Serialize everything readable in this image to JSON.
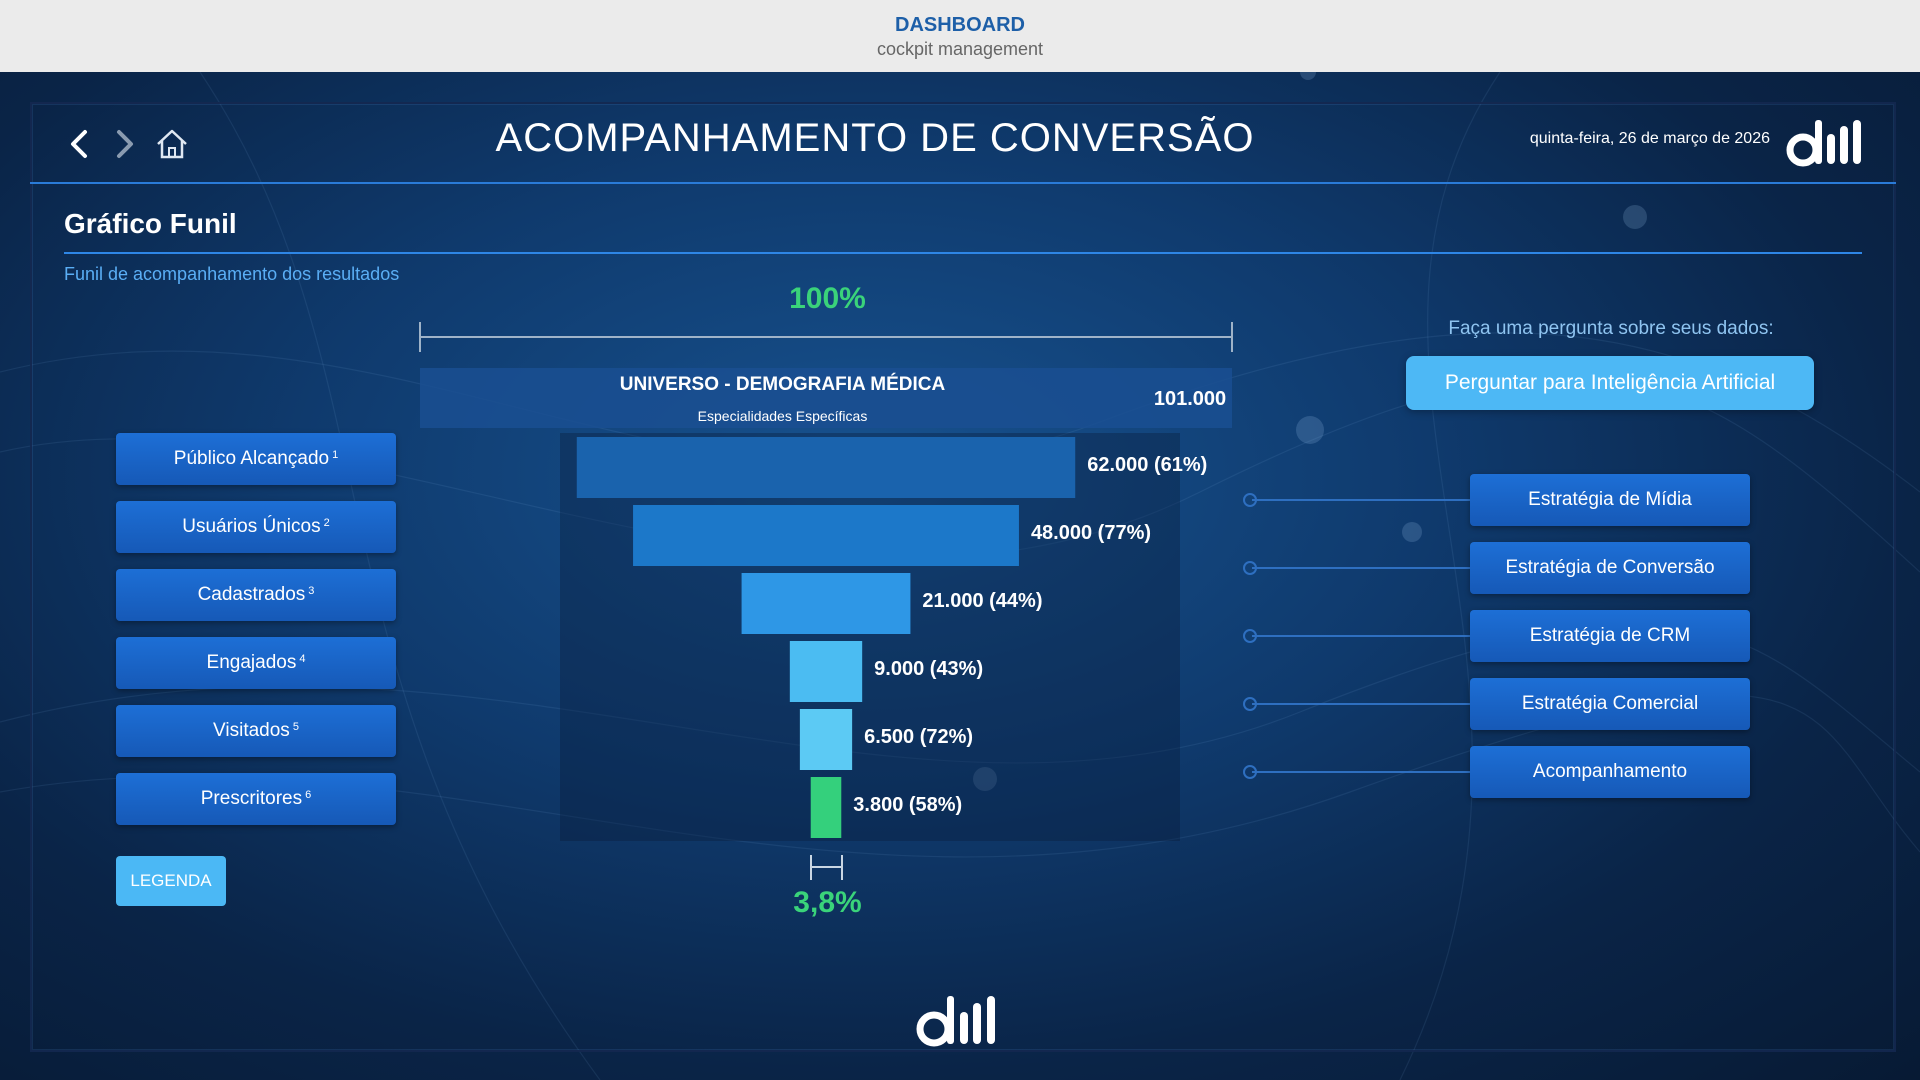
{
  "topbar": {
    "title": "DASHBOARD",
    "subtitle": "cockpit management"
  },
  "header": {
    "title": "ACOMPANHAMENTO DE CONVERSÃO",
    "date": "quinta-feira, 26 de março de 2026",
    "nav_icons": [
      "chevron-left-icon",
      "chevron-right-icon",
      "home-icon"
    ],
    "logo": "dm-logo"
  },
  "section": {
    "title": "Gráfico Funil",
    "subtitle": "Funil de acompanhamento dos resultados"
  },
  "funnel": {
    "top_percent": "100%",
    "bottom_percent": "3,8%",
    "universe": {
      "title": "UNIVERSO - DEMOGRAFIA MÉDICA",
      "subtitle": "Especialidades Específicas",
      "value_label": "101.000",
      "value": 101000
    },
    "stages": [
      {
        "label": "Público Alcançado",
        "sup": "1",
        "value": 62000,
        "value_label": "62.000 (61%)",
        "color": "#1a63ad"
      },
      {
        "label": "Usuários Únicos",
        "sup": "2",
        "value": 48000,
        "value_label": "48.000 (77%)",
        "color": "#1c78c9"
      },
      {
        "label": "Cadastrados",
        "sup": "3",
        "value": 21000,
        "value_label": "21.000 (44%)",
        "color": "#2e97e6"
      },
      {
        "label": "Engajados",
        "sup": "4",
        "value": 9000,
        "value_label": "9.000 (43%)",
        "color": "#4bbcf2"
      },
      {
        "label": "Visitados",
        "sup": "5",
        "value": 6500,
        "value_label": "6.500 (72%)",
        "color": "#5ccaf4"
      },
      {
        "label": "Prescritores",
        "sup": "6",
        "value": 3800,
        "value_label": "3.800 (58%)",
        "color": "#34d07c"
      }
    ],
    "legend_label": "LEGENDA"
  },
  "ai": {
    "prompt": "Faça uma pergunta sobre seus dados:",
    "button_label": "Perguntar para Inteligência Artificial"
  },
  "strategies": [
    {
      "label": "Estratégia de Mídia"
    },
    {
      "label": "Estratégia de Conversão"
    },
    {
      "label": "Estratégia de CRM"
    },
    {
      "label": "Estratégia Comercial"
    },
    {
      "label": "Acompanhamento"
    }
  ],
  "colors": {
    "accent_green": "#3ad37a",
    "accent_blue": "#2e86e6",
    "button_blue": "#1659b7",
    "button_light": "#4db8f5"
  }
}
